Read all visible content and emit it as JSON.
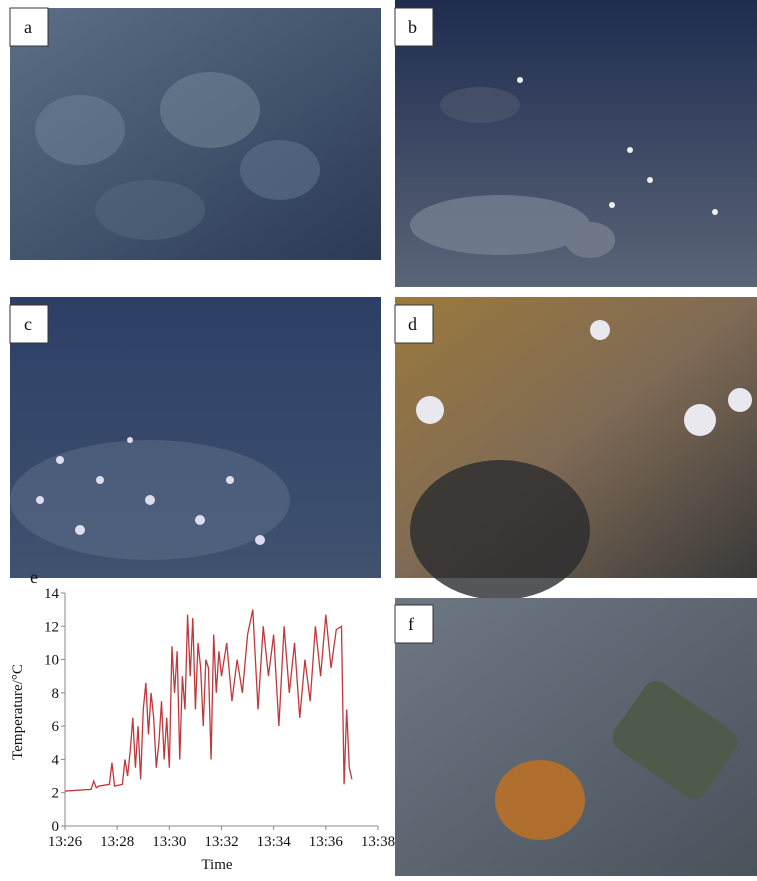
{
  "panels": [
    {
      "label": "a"
    },
    {
      "label": "b"
    },
    {
      "label": "c"
    },
    {
      "label": "d"
    },
    {
      "label": "f"
    }
  ],
  "chart_data": {
    "type": "line",
    "label": "e",
    "x_label": "Time",
    "y_label": "Temperature/°C",
    "x": [
      806,
      807,
      807.1,
      807.2,
      807.3,
      807.7,
      807.8,
      807.9,
      808.2,
      808.3,
      808.4,
      808.5,
      808.6,
      808.7,
      808.8,
      808.9,
      809.0,
      809.1,
      809.2,
      809.3,
      809.4,
      809.5,
      809.6,
      809.7,
      809.8,
      809.9,
      810.0,
      810.1,
      810.2,
      810.3,
      810.4,
      810.5,
      810.6,
      810.7,
      810.8,
      810.9,
      811.0,
      811.1,
      811.2,
      811.3,
      811.4,
      811.5,
      811.6,
      811.7,
      811.8,
      811.9,
      812.0,
      812.2,
      812.4,
      812.6,
      812.8,
      813.0,
      813.2,
      813.4,
      813.6,
      813.8,
      814.0,
      814.2,
      814.4,
      814.6,
      814.8,
      815.0,
      815.2,
      815.4,
      815.6,
      815.8,
      816.0,
      816.2,
      816.4,
      816.6,
      816.7,
      816.8,
      816.9,
      817.0
    ],
    "series": [
      {
        "color": "#c0383b",
        "values": [
          2.1,
          2.2,
          2.7,
          2.3,
          2.4,
          2.5,
          3.8,
          2.4,
          2.5,
          4,
          3,
          4.5,
          6.5,
          3.5,
          6,
          2.8,
          7,
          8.6,
          5.5,
          8,
          6.5,
          3.5,
          5,
          7.5,
          4,
          6.5,
          3.5,
          10.8,
          8,
          10.5,
          4,
          9,
          7,
          12.7,
          9,
          12.5,
          7,
          11,
          9.5,
          6,
          10,
          9.5,
          4,
          11.5,
          8,
          10.5,
          9,
          11,
          7.5,
          10,
          8,
          11.5,
          13,
          7,
          12,
          9,
          11.5,
          6,
          12,
          8,
          11,
          6.5,
          10,
          7.5,
          12,
          9,
          12.7,
          9.5,
          11.8,
          12,
          2.5,
          7,
          3.5,
          2.8
        ]
      }
    ],
    "xlim": [
      806,
      818
    ],
    "xticks": [
      {
        "value": 806,
        "label": "13:26"
      },
      {
        "value": 808,
        "label": "13:28"
      },
      {
        "value": 810,
        "label": "13:30"
      },
      {
        "value": 812,
        "label": "13:32"
      },
      {
        "value": 814,
        "label": "13:34"
      },
      {
        "value": 816,
        "label": "13:36"
      },
      {
        "value": 818,
        "label": "13:38"
      }
    ],
    "ylim": [
      0,
      14
    ],
    "yticks": [
      0,
      2,
      4,
      6,
      8,
      10,
      12,
      14
    ]
  }
}
